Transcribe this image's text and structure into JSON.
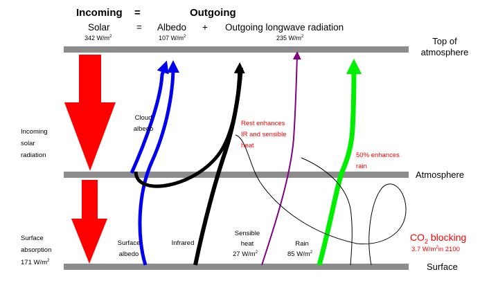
{
  "header": {
    "incoming": "Incoming",
    "equals": "=",
    "outgoing": "Outgoing",
    "solar": "Solar",
    "equals2": "=",
    "albedo": "Albedo",
    "plus": "+",
    "olr": "Outgoing longwave radiation",
    "solar_value": "342 W/m",
    "albedo_value": "107 W/m",
    "olr_value": "235 W/m",
    "sup": "2"
  },
  "levels": {
    "toa_line1": "Top of",
    "toa_line2": "atmosphere",
    "atmosphere": "Atmosphere",
    "surface": "Surface"
  },
  "labels": {
    "incoming_solar_1": "Incoming",
    "incoming_solar_2": "solar",
    "incoming_solar_3": "radiation",
    "surface_abs_1": "Surface",
    "surface_abs_2": "absorption",
    "surface_abs_value": "171 W/m",
    "cloud_albedo_1": "Cloud",
    "cloud_albedo_2": "albedo",
    "surface_albedo_1": "Surface",
    "surface_albedo_2": "albedo",
    "infrared": "Infrared",
    "sensible_heat_1": "Sensible",
    "sensible_heat_2": "heat",
    "sensible_heat_value": "27 W/m",
    "rain": "Rain",
    "rain_value": "85 W/m",
    "rest_1": "Rest enhances",
    "rest_2": "IR and sensible",
    "rest_3": "heat",
    "pct50_1": "50% enhances",
    "pct50_2": "rain",
    "co2_prefix": "CO",
    "co2_sub": "2",
    "co2_suffix": " blocking",
    "co2_value_a": "3.7 W/m",
    "co2_value_b": "in 2100"
  },
  "colors": {
    "bar": "#8c8c8c",
    "solar": "#ff0000",
    "albedo": "#0000ee",
    "infrared": "#000000",
    "sensible": "#800080",
    "rain": "#00ee00",
    "annotation": "#ff0000"
  }
}
